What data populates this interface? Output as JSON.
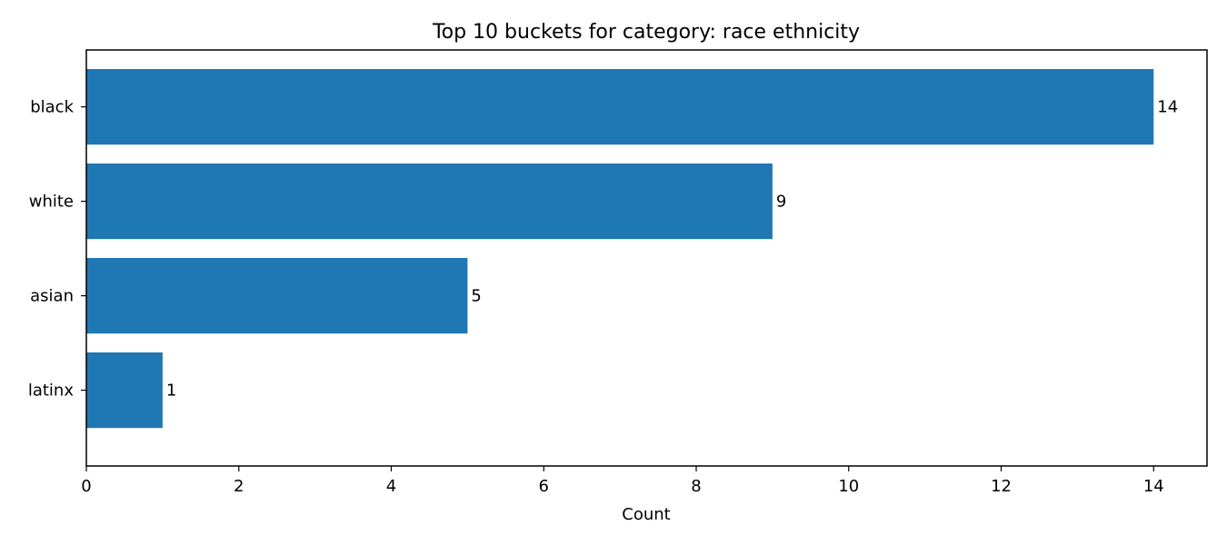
{
  "chart_data": {
    "type": "bar",
    "orientation": "horizontal",
    "title": "Top 10 buckets for category: race ethnicity",
    "xlabel": "Count",
    "ylabel": "",
    "categories": [
      "black",
      "white",
      "asian",
      "latinx"
    ],
    "values": [
      14,
      9,
      5,
      1
    ],
    "data_labels": [
      "14",
      "9",
      "5",
      "1"
    ],
    "xlim": [
      0,
      14.7
    ],
    "xticks": [
      0,
      2,
      4,
      6,
      8,
      10,
      12,
      14
    ],
    "xtick_labels": [
      "0",
      "2",
      "4",
      "6",
      "8",
      "10",
      "12",
      "14"
    ],
    "grid": false,
    "legend": "none",
    "bar_color": "#1f77b4"
  }
}
